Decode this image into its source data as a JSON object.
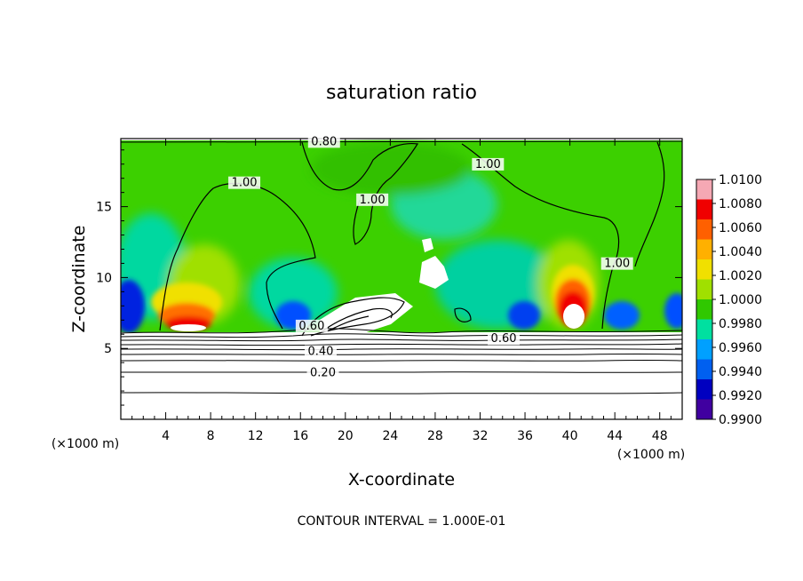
{
  "chart_data": {
    "type": "heatmap",
    "title": "saturation ratio",
    "xlabel": "X-coordinate",
    "ylabel": "Z-coordinate",
    "x_unit_left": "(×1000 m)",
    "x_unit_right": "(×1000 m)",
    "xlim": [
      0,
      50
    ],
    "ylim": [
      0,
      19.8
    ],
    "x_ticks": [
      4,
      8,
      12,
      16,
      20,
      24,
      28,
      32,
      36,
      40,
      44,
      48
    ],
    "y_ticks": [
      5,
      10,
      15
    ],
    "colorbar": {
      "labels": [
        "1.0100",
        "1.0080",
        "1.0060",
        "1.0040",
        "1.0020",
        "1.0000",
        "0.9980",
        "0.9960",
        "0.9940",
        "0.9920",
        "0.9900"
      ],
      "colors": [
        "#f5a8b4",
        "#f00000",
        "#ff6000",
        "#ffb000",
        "#f0e000",
        "#a0e000",
        "#30c800",
        "#00e0a0",
        "#00a0ff",
        "#0060f0",
        "#0000c0",
        "#4000a0"
      ]
    },
    "contour_labels": [
      {
        "text": "0.80",
        "x": 18.1,
        "y": 19.4
      },
      {
        "text": "1.00",
        "x": 11,
        "y": 16.5
      },
      {
        "text": "1.00",
        "x": 22.4,
        "y": 15.3
      },
      {
        "text": "1.00",
        "x": 32.7,
        "y": 17.8
      },
      {
        "text": "1.00",
        "x": 44.2,
        "y": 10.8
      },
      {
        "text": "0.60",
        "x": 34.1,
        "y": 5.5
      },
      {
        "text": "0.40",
        "x": 17.8,
        "y": 4.6
      },
      {
        "text": "0.20",
        "x": 18.0,
        "y": 3.1
      },
      {
        "text": "0.60",
        "x": 17.0,
        "y": 6.4
      }
    ],
    "footer": "CONTOUR INTERVAL = 1.000E-01"
  }
}
